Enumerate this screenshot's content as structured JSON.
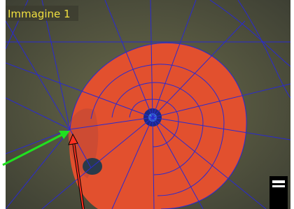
{
  "image": {
    "label": "Immagine 1"
  }
}
